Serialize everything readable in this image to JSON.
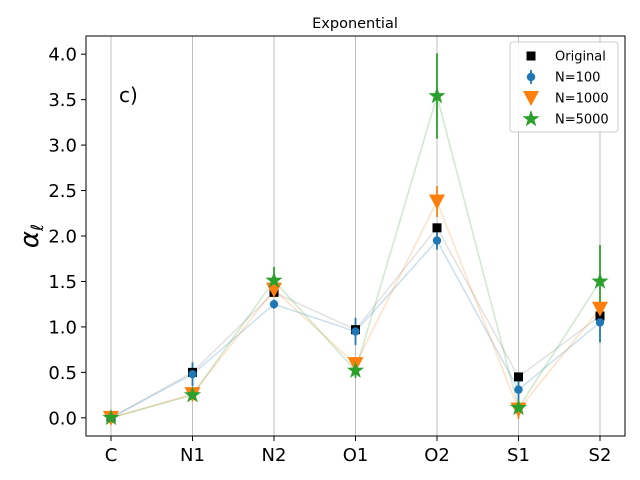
{
  "chart_data": {
    "type": "line",
    "title": "Exponential",
    "annotation": "c)",
    "xlabel": "",
    "ylabel": "α_ℓ",
    "categories": [
      "C",
      "N1",
      "N2",
      "O1",
      "O2",
      "S1",
      "S2"
    ],
    "ylim": [
      -0.2,
      4.2
    ],
    "yticks": [
      0.0,
      0.5,
      1.0,
      1.5,
      2.0,
      2.5,
      3.0,
      3.5,
      4.0
    ],
    "ytick_labels": [
      "0.0",
      "0.5",
      "1.0",
      "1.5",
      "2.0",
      "2.5",
      "3.0",
      "3.5",
      "4.0"
    ],
    "grid": "vertical",
    "legend_position": "top-right",
    "series": [
      {
        "name": "Original",
        "marker": "square",
        "color": "#000000",
        "line_color": "#7f7f7f",
        "values": [
          0.0,
          0.5,
          1.38,
          0.97,
          2.09,
          0.45,
          1.12
        ],
        "errors": [
          0,
          0,
          0,
          0,
          0,
          0,
          0
        ]
      },
      {
        "name": "N=100",
        "marker": "circle",
        "color": "#1f77b4",
        "line_color": "#1f77b4",
        "values": [
          0.0,
          0.48,
          1.25,
          0.95,
          1.95,
          0.31,
          1.05
        ],
        "errors": [
          0,
          0.13,
          0.05,
          0.15,
          0.1,
          0.12,
          0.22
        ]
      },
      {
        "name": "N=1000",
        "marker": "triangle-down",
        "color": "#ff7f0e",
        "line_color": "#ff7f0e",
        "values": [
          0.0,
          0.26,
          1.41,
          0.59,
          2.38,
          0.09,
          1.2
        ],
        "errors": [
          0,
          0,
          0.07,
          0.07,
          0.17,
          0.1,
          0.08
        ]
      },
      {
        "name": "N=5000",
        "marker": "star",
        "color": "#2ca02c",
        "line_color": "#2ca02c",
        "values": [
          0.0,
          0.25,
          1.51,
          0.52,
          3.54,
          0.11,
          1.5
        ],
        "errors": [
          0,
          0.02,
          0.15,
          0.08,
          0.47,
          0.07,
          0.4
        ]
      }
    ]
  }
}
